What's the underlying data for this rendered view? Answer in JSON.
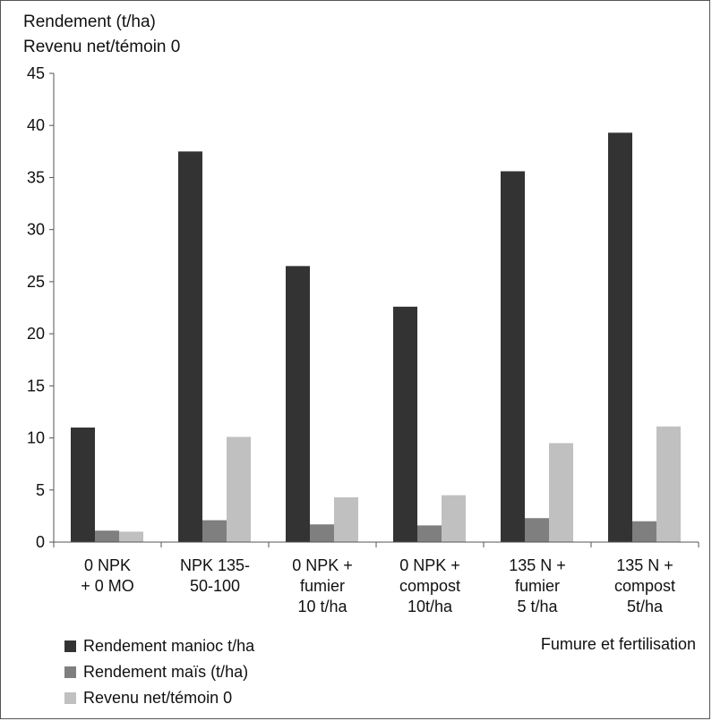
{
  "chart_data": {
    "type": "bar",
    "ylabel_lines": [
      "Rendement (t/ha)",
      "Revenu net/témoin 0"
    ],
    "xlabel": "Fumure et fertilisation",
    "ylim": [
      0,
      45
    ],
    "yticks": [
      0,
      5,
      10,
      15,
      20,
      25,
      30,
      35,
      40,
      45
    ],
    "grid": false,
    "legend_position": "bottom-left",
    "categories": [
      [
        "0 NPK",
        "+ 0 MO"
      ],
      [
        "NPK 135-",
        "50-100"
      ],
      [
        "0 NPK +",
        "fumier",
        "10 t/ha"
      ],
      [
        "0 NPK +",
        "compost",
        "10t/ha"
      ],
      [
        "135 N +",
        "fumier",
        "5 t/ha"
      ],
      [
        "135 N +",
        "compost",
        "5t/ha"
      ]
    ],
    "series": [
      {
        "name": "Rendement manioc t/ha",
        "color": "#333333",
        "values": [
          11.0,
          37.5,
          26.5,
          22.6,
          35.6,
          39.3
        ]
      },
      {
        "name": "Rendement maïs (t/ha)",
        "color": "#7f7f7f",
        "values": [
          1.1,
          2.1,
          1.7,
          1.6,
          2.3,
          2.0
        ]
      },
      {
        "name": "Revenu net/témoin 0",
        "color": "#c0c0c0",
        "values": [
          1.0,
          10.1,
          4.3,
          4.5,
          9.5,
          11.1
        ]
      }
    ]
  }
}
